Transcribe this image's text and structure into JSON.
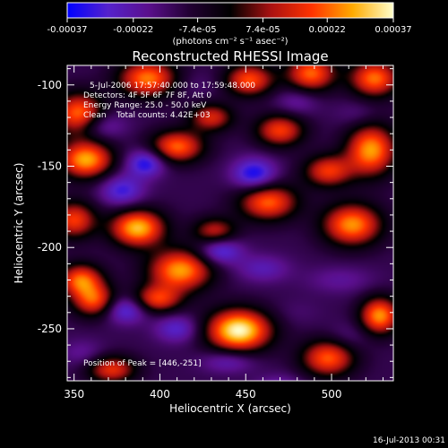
{
  "chart_data": {
    "type": "heatmap",
    "title": "Reconstructed RHESSI Image",
    "xlabel": "Heliocentric X (arcsec)",
    "ylabel": "Heliocentric Y (arcsec)",
    "xlim": [
      346,
      536
    ],
    "ylim": [
      -282,
      -88
    ],
    "x_ticks": [
      350,
      400,
      450,
      500
    ],
    "y_ticks": [
      -100,
      -150,
      -200,
      -250
    ],
    "colorbar": {
      "min": -0.00037,
      "max": 0.00037,
      "tick_labels": [
        "-0.00037",
        "-0.00022",
        "-7.4e-05",
        "7.4e-05",
        "0.00022",
        "0.00037"
      ],
      "tick_values": [
        -0.00037,
        -0.00022,
        -7.4e-05,
        7.4e-05,
        0.00022,
        0.00037
      ],
      "units_label": "(photons cm⁻² s⁻¹ asec⁻²)",
      "colors": [
        "#0000ff",
        "#5522cc",
        "#5a0f8c",
        "#220033",
        "#000000",
        "#aa1111",
        "#ff3300",
        "#ffaa00",
        "#ffffcc"
      ]
    },
    "annotations": {
      "time_range": "5-Jul-2006 17:57:40.000 to 17:59:48.000",
      "detectors": "Detectors: 4F 5F 6F 7F 8F, Att 0",
      "energy": "Energy Range: 25.0 - 50.0 keV",
      "clean": "Clean    Total counts: 4.42E+03",
      "peak": "Position of Peak = [446,-251]"
    },
    "peak": {
      "x": 446,
      "y": -251
    },
    "sources": [
      {
        "x": 446,
        "y": -251,
        "value": 0.00037,
        "sx": 13,
        "sy": 9
      },
      {
        "x": 393,
        "y": -96,
        "value": 0.00024,
        "sx": 12,
        "sy": 8
      },
      {
        "x": 452,
        "y": -97,
        "value": 0.0002,
        "sx": 10,
        "sy": 7
      },
      {
        "x": 488,
        "y": -93,
        "value": 0.00022,
        "sx": 10,
        "sy": 8
      },
      {
        "x": 525,
        "y": -96,
        "value": 0.00023,
        "sx": 10,
        "sy": 8
      },
      {
        "x": 353,
        "y": -118,
        "value": 0.00024,
        "sx": 10,
        "sy": 9
      },
      {
        "x": 357,
        "y": -146,
        "value": 0.00028,
        "sx": 11,
        "sy": 8
      },
      {
        "x": 410,
        "y": -138,
        "value": 0.00022,
        "sx": 11,
        "sy": 7
      },
      {
        "x": 430,
        "y": -120,
        "value": 0.00014,
        "sx": 9,
        "sy": 6
      },
      {
        "x": 470,
        "y": -128,
        "value": 0.00018,
        "sx": 10,
        "sy": 7
      },
      {
        "x": 523,
        "y": -140,
        "value": 0.00027,
        "sx": 10,
        "sy": 11
      },
      {
        "x": 498,
        "y": -153,
        "value": 0.00017,
        "sx": 10,
        "sy": 7
      },
      {
        "x": 387,
        "y": -188,
        "value": 0.0003,
        "sx": 11,
        "sy": 8
      },
      {
        "x": 350,
        "y": -183,
        "value": 0.00018,
        "sx": 9,
        "sy": 8
      },
      {
        "x": 463,
        "y": -172,
        "value": 0.00022,
        "sx": 12,
        "sy": 8
      },
      {
        "x": 512,
        "y": -186,
        "value": 0.00026,
        "sx": 12,
        "sy": 9
      },
      {
        "x": 432,
        "y": -190,
        "value": 0.00012,
        "sx": 9,
        "sy": 6
      },
      {
        "x": 354,
        "y": -220,
        "value": 0.00022,
        "sx": 9,
        "sy": 7
      },
      {
        "x": 412,
        "y": -214,
        "value": 0.00027,
        "sx": 13,
        "sy": 9
      },
      {
        "x": 362,
        "y": -233,
        "value": 0.00019,
        "sx": 9,
        "sy": 7
      },
      {
        "x": 398,
        "y": -232,
        "value": 0.00017,
        "sx": 10,
        "sy": 6
      },
      {
        "x": 528,
        "y": -242,
        "value": 0.00026,
        "sx": 8,
        "sy": 8
      },
      {
        "x": 498,
        "y": -268,
        "value": 0.00021,
        "sx": 11,
        "sy": 8
      },
      {
        "x": 372,
        "y": -275,
        "value": 0.00016,
        "sx": 10,
        "sy": 6
      },
      {
        "x": 378,
        "y": -165,
        "value": -0.00031,
        "sx": 9,
        "sy": 7
      },
      {
        "x": 455,
        "y": -155,
        "value": -0.00036,
        "sx": 9,
        "sy": 7
      },
      {
        "x": 392,
        "y": -148,
        "value": -0.00035,
        "sx": 8,
        "sy": 6
      },
      {
        "x": 365,
        "y": -125,
        "value": -0.00026,
        "sx": 10,
        "sy": 6
      },
      {
        "x": 420,
        "y": -100,
        "value": -0.00016,
        "sx": 12,
        "sy": 6
      },
      {
        "x": 435,
        "y": -202,
        "value": -0.00033,
        "sx": 9,
        "sy": 6
      },
      {
        "x": 380,
        "y": -238,
        "value": -0.00033,
        "sx": 9,
        "sy": 6
      },
      {
        "x": 410,
        "y": -250,
        "value": -0.00028,
        "sx": 9,
        "sy": 6
      },
      {
        "x": 460,
        "y": -213,
        "value": -0.00024,
        "sx": 11,
        "sy": 6
      },
      {
        "x": 505,
        "y": -220,
        "value": -0.0002,
        "sx": 14,
        "sy": 6
      },
      {
        "x": 480,
        "y": -110,
        "value": -0.00022,
        "sx": 9,
        "sy": 6
      },
      {
        "x": 515,
        "y": -118,
        "value": -0.00018,
        "sx": 9,
        "sy": 6
      },
      {
        "x": 440,
        "y": -270,
        "value": -0.00025,
        "sx": 11,
        "sy": 5
      },
      {
        "x": 470,
        "y": -285,
        "value": -0.00022,
        "sx": 10,
        "sy": 5
      },
      {
        "x": 510,
        "y": -255,
        "value": -0.00018,
        "sx": 9,
        "sy": 6
      },
      {
        "x": 355,
        "y": -265,
        "value": -0.0002,
        "sx": 9,
        "sy": 6
      },
      {
        "x": 480,
        "y": -240,
        "value": -0.00015,
        "sx": 10,
        "sy": 6
      }
    ]
  },
  "footer": {
    "timestamp": "16-Jul-2013 00:31"
  }
}
